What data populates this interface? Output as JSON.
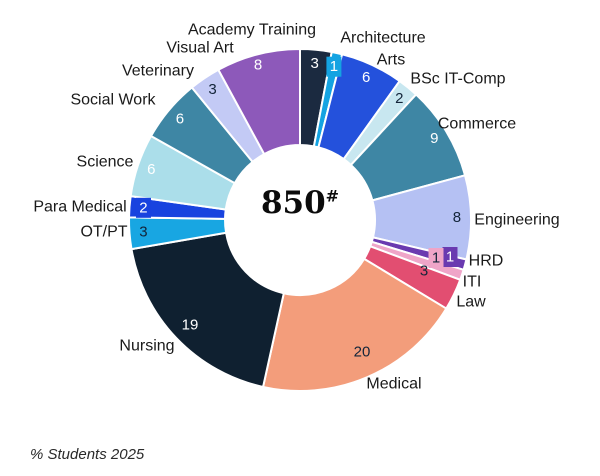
{
  "chart_data": {
    "type": "pie",
    "subtype": "donut",
    "title": "",
    "center_value": "850",
    "center_superscript": "#",
    "footnote": "% Students 2025",
    "start_angle_deg": 0,
    "direction": "clockwise",
    "legend": "none",
    "segments": [
      {
        "label": "Academy Training",
        "value": 3,
        "color": "#1b2a40",
        "value_color": "#ffffff",
        "badge": false
      },
      {
        "label": "Architecture",
        "value": 1,
        "color": "#14a3e2",
        "value_color": "#ffffff",
        "badge": true
      },
      {
        "label": "Arts",
        "value": 6,
        "color": "#2451dc",
        "value_color": "#ffffff",
        "badge": false
      },
      {
        "label": "BSc IT-Comp",
        "value": 2,
        "color": "#c8e7f0",
        "value_color": "#13253a",
        "badge": false
      },
      {
        "label": "Commerce",
        "value": 9,
        "color": "#3e86a4",
        "value_color": "#ffffff",
        "badge": false
      },
      {
        "label": "Engineering",
        "value": 8,
        "color": "#b5c1f3",
        "value_color": "#13253a",
        "badge": false
      },
      {
        "label": "HRD",
        "value": 1,
        "color": "#6a3ab0",
        "value_color": "#ffffff",
        "badge": true
      },
      {
        "label": "ITI",
        "value": 1,
        "color": "#efa5c8",
        "value_color": "#13253a",
        "badge": true
      },
      {
        "label": "Law",
        "value": 3,
        "color": "#e24e71",
        "value_color": "#13253a",
        "badge": false
      },
      {
        "label": "Medical",
        "value": 20,
        "color": "#f39d7b",
        "value_color": "#13253a",
        "badge": false
      },
      {
        "label": "Nursing",
        "value": 19,
        "color": "#0f2030",
        "value_color": "#ffffff",
        "badge": false
      },
      {
        "label": "OT/PT",
        "value": 3,
        "color": "#18a6e2",
        "value_color": "#13253a",
        "badge": false
      },
      {
        "label": "Para Medical",
        "value": 2,
        "color": "#1843df",
        "value_color": "#ffffff",
        "badge": true
      },
      {
        "label": "Science",
        "value": 6,
        "color": "#abdeea",
        "value_color": "#ffffff",
        "badge": false
      },
      {
        "label": "Social Work",
        "value": 6,
        "color": "#3e86a4",
        "value_color": "#ffffff",
        "badge": false
      },
      {
        "label": "Veterinary",
        "value": 3,
        "color": "#c3caf5",
        "value_color": "#13253a",
        "badge": false
      },
      {
        "label": "Visual Art",
        "value": 8,
        "color": "#8d59ba",
        "value_color": "#ffffff",
        "badge": false
      }
    ]
  }
}
